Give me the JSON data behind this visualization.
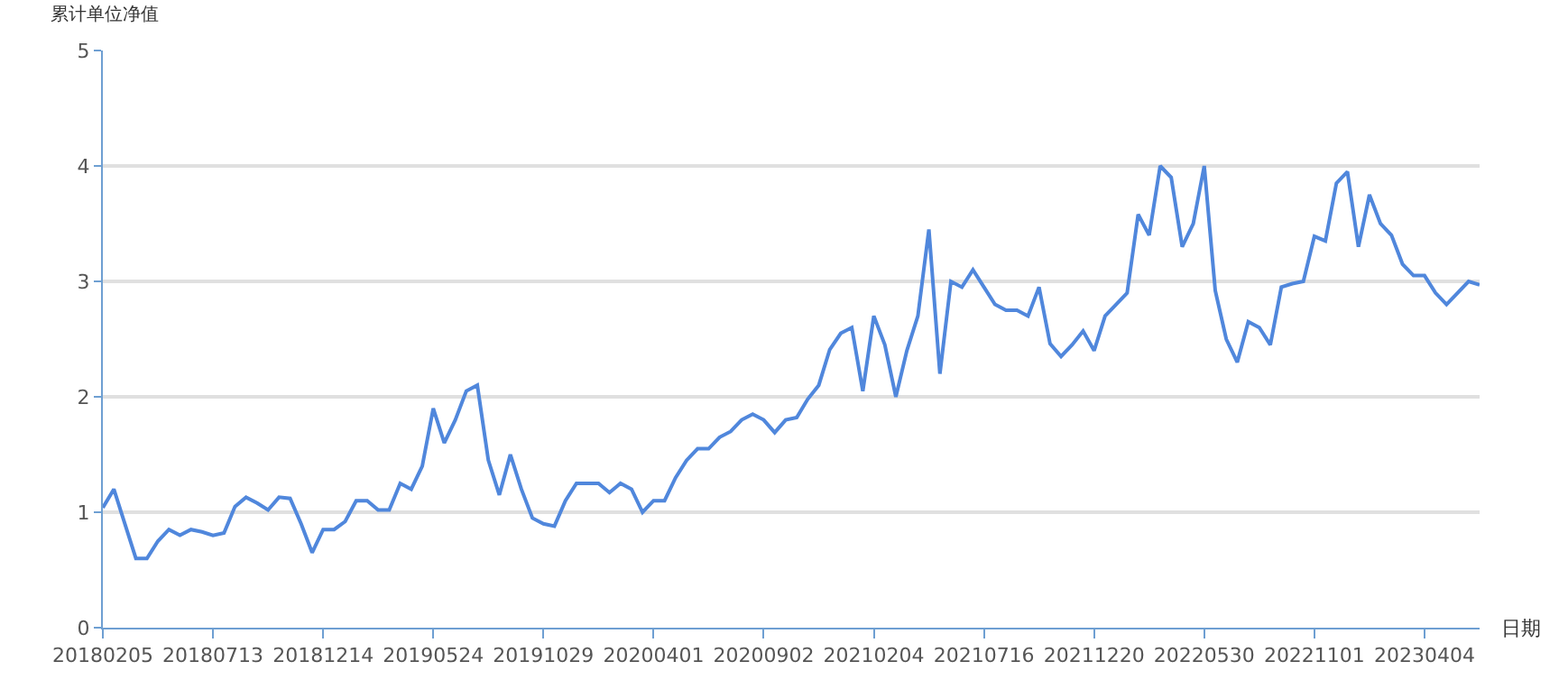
{
  "chart_data": {
    "type": "line",
    "xlabel": "日期",
    "ylabel": "累计单位净值",
    "categories": [
      "20180205",
      null,
      null,
      null,
      null,
      null,
      null,
      null,
      null,
      null,
      "20180713",
      null,
      null,
      null,
      null,
      null,
      null,
      null,
      null,
      null,
      "20181214",
      null,
      null,
      null,
      null,
      null,
      null,
      null,
      null,
      null,
      "20190524",
      null,
      null,
      null,
      null,
      null,
      null,
      null,
      null,
      null,
      "20191029",
      null,
      null,
      null,
      null,
      null,
      null,
      null,
      null,
      null,
      "20200401",
      null,
      null,
      null,
      null,
      null,
      null,
      null,
      null,
      null,
      "20200902",
      null,
      null,
      null,
      null,
      null,
      null,
      null,
      null,
      null,
      "20210204",
      null,
      null,
      null,
      null,
      null,
      null,
      null,
      null,
      null,
      "20210716",
      null,
      null,
      null,
      null,
      null,
      null,
      null,
      null,
      null,
      "20211220",
      null,
      null,
      null,
      null,
      null,
      null,
      null,
      null,
      null,
      "20220530",
      null,
      null,
      null,
      null,
      null,
      null,
      null,
      null,
      null,
      "20221101",
      null,
      null,
      null,
      null,
      null,
      null,
      null,
      null,
      null,
      "20230404",
      null,
      null,
      null,
      null,
      null
    ],
    "series": [
      {
        "color": "#5087dc",
        "values": [
          1.04,
          1.2,
          0.9,
          0.6,
          0.6,
          0.75,
          0.85,
          0.8,
          0.85,
          0.83,
          0.8,
          0.82,
          1.05,
          1.13,
          1.08,
          1.02,
          1.13,
          1.12,
          0.9,
          0.65,
          0.85,
          0.85,
          0.92,
          1.1,
          1.1,
          1.02,
          1.02,
          1.25,
          1.2,
          1.4,
          1.9,
          1.6,
          1.8,
          2.05,
          2.1,
          1.45,
          1.15,
          1.5,
          1.2,
          0.95,
          0.9,
          0.88,
          1.1,
          1.25,
          1.25,
          1.25,
          1.17,
          1.25,
          1.2,
          1.0,
          1.1,
          1.1,
          1.3,
          1.45,
          1.55,
          1.55,
          1.65,
          1.7,
          1.8,
          1.85,
          1.8,
          1.69,
          1.8,
          1.82,
          1.98,
          2.1,
          2.41,
          2.55,
          2.6,
          2.05,
          2.7,
          2.45,
          2.0,
          2.4,
          2.7,
          3.45,
          2.2,
          3.0,
          2.95,
          3.1,
          2.95,
          2.8,
          2.75,
          2.75,
          2.7,
          2.95,
          2.46,
          2.35,
          2.45,
          2.57,
          2.4,
          2.7,
          2.8,
          2.9,
          3.58,
          3.4,
          4.0,
          3.9,
          3.3,
          3.5,
          4.0,
          2.92,
          2.5,
          2.3,
          2.65,
          2.6,
          2.45,
          2.95,
          2.98,
          3.0,
          3.39,
          3.35,
          3.85,
          3.95,
          3.3,
          3.75,
          3.5,
          3.4,
          3.15,
          3.05,
          3.05,
          2.9,
          2.8,
          2.9,
          3.0,
          2.97
        ]
      }
    ],
    "ylim": [
      0,
      5
    ],
    "yticks": [
      0,
      1,
      2,
      3,
      4,
      5
    ],
    "grid": "y",
    "marker": "none",
    "line_style": "solid"
  }
}
